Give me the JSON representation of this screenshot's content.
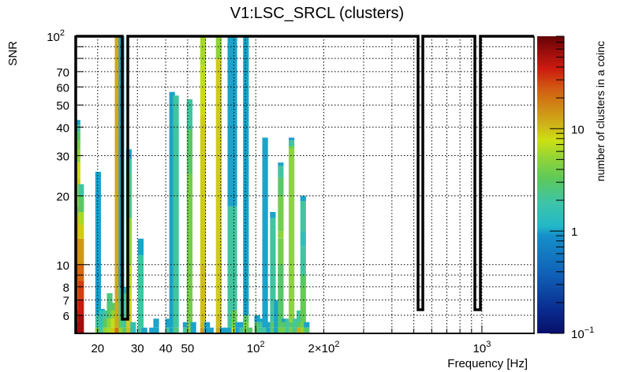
{
  "chart_data": {
    "type": "heatmap",
    "title": "V1:LSC_SRCL (clusters)",
    "xlabel": "Frequency [Hz]",
    "ylabel": "SNR",
    "zlabel": "number of clusters in a coinc",
    "x_scale": "log",
    "y_scale": "log",
    "z_scale": "log",
    "xlim": [
      16,
      1700
    ],
    "ylim": [
      5,
      100
    ],
    "zlim": [
      0.1,
      80
    ],
    "grid": true,
    "x_ticks": [
      {
        "value": 20,
        "label": "20"
      },
      {
        "value": 30,
        "label": "30"
      },
      {
        "value": 40,
        "label": "40"
      },
      {
        "value": 50,
        "label": "50"
      },
      {
        "value": 100,
        "label": "10",
        "exp": "2"
      },
      {
        "value": 200,
        "label": "2×10",
        "exp": "2"
      },
      {
        "value": 1000,
        "label": "10",
        "exp": "3"
      }
    ],
    "y_ticks": [
      {
        "value": 6,
        "label": "6"
      },
      {
        "value": 7,
        "label": "7"
      },
      {
        "value": 8,
        "label": "8"
      },
      {
        "value": 10,
        "label": "10"
      },
      {
        "value": 20,
        "label": "20"
      },
      {
        "value": 30,
        "label": "30"
      },
      {
        "value": 40,
        "label": "40"
      },
      {
        "value": 50,
        "label": "50"
      },
      {
        "value": 60,
        "label": "60"
      },
      {
        "value": 70,
        "label": "70"
      },
      {
        "value": 100,
        "label": "10",
        "exp": "2"
      }
    ],
    "z_ticks": [
      {
        "value": 0.1,
        "label": "10",
        "exp": "−1"
      },
      {
        "value": 1,
        "label": "1"
      },
      {
        "value": 10,
        "label": "10"
      }
    ],
    "columns": [
      {
        "x": 16.3,
        "segs": [
          [
            5.6,
            50
          ],
          [
            6.3,
            40
          ],
          [
            7,
            30
          ],
          [
            10,
            22
          ],
          [
            13,
            16
          ],
          [
            18,
            12
          ],
          [
            24,
            9
          ],
          [
            28,
            8
          ],
          [
            32,
            5
          ],
          [
            35,
            4
          ],
          [
            38,
            3
          ],
          [
            41,
            2
          ],
          [
            43,
            1
          ]
        ]
      },
      {
        "x": 16.9,
        "segs": [
          [
            6,
            55
          ],
          [
            7,
            40
          ],
          [
            8.5,
            30
          ],
          [
            10,
            22
          ],
          [
            13,
            14
          ],
          [
            15,
            9
          ],
          [
            17,
            6
          ],
          [
            20,
            3
          ],
          [
            22.5,
            2
          ]
        ]
      },
      {
        "x": 20.1,
        "segs": [
          [
            5.3,
            4
          ],
          [
            6,
            2
          ],
          [
            25.5,
            1
          ]
        ]
      },
      {
        "x": 20.9,
        "segs": [
          [
            5.3,
            2
          ],
          [
            6.3,
            1.5
          ],
          [
            6.4,
            1
          ]
        ]
      },
      {
        "x": 21.7,
        "segs": [
          [
            5.3,
            5
          ],
          [
            5.8,
            3
          ],
          [
            6.3,
            2
          ]
        ]
      },
      {
        "x": 22.6,
        "segs": [
          [
            5.3,
            6
          ],
          [
            5.8,
            5
          ],
          [
            6.5,
            3
          ],
          [
            7.5,
            2.5
          ]
        ]
      },
      {
        "x": 23.5,
        "segs": [
          [
            5.3,
            9
          ],
          [
            5.8,
            7
          ],
          [
            6.3,
            5
          ],
          [
            6.8,
            3
          ]
        ]
      },
      {
        "x": 24.5,
        "segs": [
          [
            5.3,
            20
          ],
          [
            6,
            12
          ],
          [
            100,
            12
          ]
        ]
      },
      {
        "x": 25.5,
        "segs": [
          [
            5.3,
            5
          ],
          [
            6,
            3
          ],
          [
            6.8,
            2
          ],
          [
            8,
            1.5
          ],
          [
            100,
            1
          ]
        ]
      },
      {
        "x": 26.5,
        "segs": [
          [
            5.3,
            3
          ],
          [
            6.3,
            2
          ],
          [
            7.5,
            2
          ],
          [
            8,
            1
          ]
        ]
      },
      {
        "x": 27.5,
        "segs": [
          [
            5.3,
            10
          ],
          [
            6.3,
            9
          ],
          [
            7.5,
            8
          ],
          [
            10,
            7
          ],
          [
            16,
            5
          ],
          [
            25,
            2.5
          ],
          [
            29,
            2
          ],
          [
            32,
            1
          ]
        ]
      },
      {
        "x": 28.7,
        "segs": [
          [
            5.6,
            1.5
          ]
        ]
      },
      {
        "x": 31,
        "segs": [
          [
            5.3,
            2
          ],
          [
            11,
            2
          ],
          [
            13,
            1
          ]
        ]
      },
      {
        "x": 32.2,
        "segs": [
          [
            5.3,
            1
          ]
        ]
      },
      {
        "x": 34.8,
        "segs": [
          [
            5.3,
            1
          ]
        ]
      },
      {
        "x": 36.3,
        "segs": [
          [
            5.3,
            1
          ],
          [
            5.8,
            1
          ]
        ]
      },
      {
        "x": 41,
        "segs": [
          [
            5.3,
            2
          ],
          [
            5.8,
            1
          ]
        ]
      },
      {
        "x": 42.7,
        "segs": [
          [
            5.3,
            1
          ],
          [
            57,
            1
          ]
        ]
      },
      {
        "x": 44.4,
        "segs": [
          [
            5.3,
            2.5
          ],
          [
            55,
            2
          ]
        ]
      },
      {
        "x": 49,
        "segs": [
          [
            5.3,
            2
          ],
          [
            5.6,
            1
          ]
        ]
      },
      {
        "x": 51,
        "segs": [
          [
            5.3,
            5
          ],
          [
            25,
            4
          ],
          [
            39,
            3
          ],
          [
            53,
            2
          ]
        ]
      },
      {
        "x": 53,
        "segs": [
          [
            5.6,
            1
          ]
        ]
      },
      {
        "x": 58.5,
        "segs": [
          [
            5.3,
            14
          ],
          [
            5.6,
            11
          ],
          [
            10,
            10
          ],
          [
            45,
            9
          ],
          [
            60,
            8
          ],
          [
            75,
            7
          ],
          [
            100,
            6
          ]
        ]
      },
      {
        "x": 61,
        "segs": [
          [
            5.3,
            1
          ],
          [
            5.6,
            1
          ]
        ]
      },
      {
        "x": 63.3,
        "segs": [
          [
            5.3,
            1
          ]
        ]
      },
      {
        "x": 68.6,
        "segs": [
          [
            5.3,
            12
          ],
          [
            6,
            10
          ],
          [
            80,
            9
          ],
          [
            100,
            5
          ]
        ]
      },
      {
        "x": 71.4,
        "segs": [
          [
            5.3,
            1
          ]
        ]
      },
      {
        "x": 74.3,
        "segs": [
          [
            5.3,
            1
          ]
        ]
      },
      {
        "x": 77.3,
        "segs": [
          [
            5.3,
            1
          ],
          [
            18,
            2
          ],
          [
            100,
            1
          ]
        ]
      },
      {
        "x": 80.4,
        "segs": [
          [
            5.3,
            7
          ],
          [
            5.6,
            4
          ],
          [
            6.3,
            3.5
          ],
          [
            10,
            2
          ],
          [
            18,
            2
          ],
          [
            100,
            1
          ]
        ]
      },
      {
        "x": 83.6,
        "segs": [
          [
            5.3,
            1
          ],
          [
            5.6,
            1
          ]
        ]
      },
      {
        "x": 87,
        "segs": [
          [
            5.3,
            2
          ],
          [
            5.6,
            1
          ]
        ]
      },
      {
        "x": 90.5,
        "segs": [
          [
            5.3,
            4
          ],
          [
            5.6,
            4
          ],
          [
            6,
            3
          ],
          [
            100,
            1
          ]
        ]
      },
      {
        "x": 94,
        "segs": [
          [
            5.3,
            3
          ]
        ]
      },
      {
        "x": 101.5,
        "segs": [
          [
            5.3,
            3
          ],
          [
            5.6,
            3
          ],
          [
            6,
            1
          ],
          [
            5.8,
            1
          ]
        ]
      },
      {
        "x": 105.5,
        "segs": [
          [
            5.3,
            2
          ],
          [
            5.6,
            2
          ],
          [
            5.8,
            1
          ]
        ]
      },
      {
        "x": 110,
        "segs": [
          [
            5.3,
            2
          ],
          [
            36,
            1
          ]
        ]
      },
      {
        "x": 114.5,
        "segs": [
          [
            5.3,
            1
          ],
          [
            5.6,
            1
          ]
        ]
      },
      {
        "x": 119,
        "segs": [
          [
            5.3,
            3
          ],
          [
            5.6,
            3
          ],
          [
            6.3,
            2
          ],
          [
            9,
            2
          ],
          [
            16,
            2
          ],
          [
            17,
            1
          ]
        ]
      },
      {
        "x": 124,
        "segs": [
          [
            5.3,
            1
          ],
          [
            5.6,
            1
          ],
          [
            7,
            1
          ]
        ]
      },
      {
        "x": 129,
        "segs": [
          [
            5.3,
            4
          ],
          [
            6,
            3
          ],
          [
            10,
            3
          ],
          [
            13,
            4
          ],
          [
            14,
            5
          ],
          [
            20,
            4
          ],
          [
            24,
            3
          ],
          [
            27,
            2
          ],
          [
            28,
            1
          ]
        ]
      },
      {
        "x": 134,
        "segs": [
          [
            5.3,
            4
          ],
          [
            5.6,
            3
          ],
          [
            5.8,
            1
          ]
        ]
      },
      {
        "x": 139,
        "segs": [
          [
            5.3,
            2
          ],
          [
            5.8,
            2
          ]
        ]
      },
      {
        "x": 144,
        "segs": [
          [
            5.3,
            4
          ],
          [
            5.6,
            3
          ],
          [
            32,
            5
          ],
          [
            33,
            4
          ],
          [
            35,
            2
          ],
          [
            36,
            1
          ]
        ]
      },
      {
        "x": 150,
        "segs": [
          [
            5.3,
            2
          ],
          [
            5.6,
            2
          ],
          [
            5.8,
            2
          ]
        ]
      },
      {
        "x": 156,
        "segs": [
          [
            5.3,
            12
          ],
          [
            5.6,
            3
          ],
          [
            6,
            2
          ],
          [
            6.3,
            2
          ],
          [
            5.8,
            1
          ]
        ]
      },
      {
        "x": 162,
        "segs": [
          [
            5.3,
            5
          ],
          [
            5.6,
            4
          ],
          [
            8,
            3.5
          ],
          [
            9,
            3
          ],
          [
            12,
            2
          ],
          [
            14,
            1.5
          ],
          [
            19,
            2
          ],
          [
            20,
            1
          ]
        ]
      },
      {
        "x": 168,
        "segs": [
          [
            5.3,
            3
          ],
          [
            5.6,
            1
          ]
        ]
      }
    ],
    "colormap": "kBird / rainbow (blue→cyan→green→yellow→orange→red→dark red)"
  }
}
